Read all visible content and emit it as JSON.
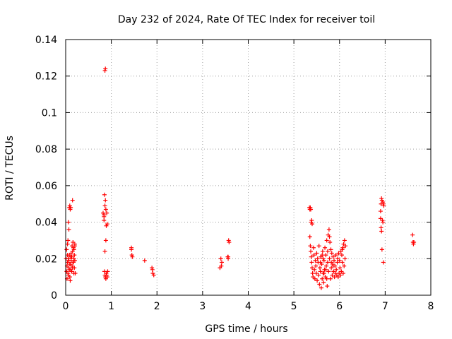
{
  "chart_data": {
    "type": "scatter",
    "title": "Day 232 of 2024, Rate Of TEC Index for receiver toil",
    "xlabel": "GPS time / hours",
    "ylabel": "ROTI / TECUs",
    "xlim": [
      0,
      8
    ],
    "ylim": [
      0,
      0.14
    ],
    "xticks": [
      0,
      1,
      2,
      3,
      4,
      5,
      6,
      7,
      8
    ],
    "xtick_labels": [
      "0",
      "1",
      "2",
      "3",
      "4",
      "5",
      "6",
      "7",
      "8"
    ],
    "yticks": [
      0,
      0.02,
      0.04,
      0.06,
      0.08,
      0.1,
      0.12,
      0.14
    ],
    "ytick_labels": [
      "0",
      "0.02",
      "0.04",
      "0.06",
      "0.08",
      "0.1",
      "0.12",
      "0.14"
    ],
    "grid": true,
    "marker": "+",
    "series": [
      {
        "name": "ROTI",
        "color": "#ff0000",
        "points": [
          [
            0.02,
            0.013
          ],
          [
            0.03,
            0.016
          ],
          [
            0.04,
            0.018
          ],
          [
            0.05,
            0.012
          ],
          [
            0.06,
            0.02
          ],
          [
            0.07,
            0.015
          ],
          [
            0.08,
            0.022
          ],
          [
            0.09,
            0.01
          ],
          [
            0.1,
            0.017
          ],
          [
            0.11,
            0.014
          ],
          [
            0.12,
            0.019
          ],
          [
            0.13,
            0.021
          ],
          [
            0.14,
            0.016
          ],
          [
            0.15,
            0.024
          ],
          [
            0.16,
            0.018
          ],
          [
            0.17,
            0.026
          ],
          [
            0.18,
            0.02
          ],
          [
            0.19,
            0.015
          ],
          [
            0.2,
            0.028
          ],
          [
            0.21,
            0.012
          ],
          [
            0.02,
            0.025
          ],
          [
            0.04,
            0.028
          ],
          [
            0.03,
            0.009
          ],
          [
            0.06,
            0.011
          ],
          [
            0.08,
            0.014
          ],
          [
            0.1,
            0.008
          ],
          [
            0.12,
            0.023
          ],
          [
            0.14,
            0.027
          ],
          [
            0.16,
            0.029
          ],
          [
            0.18,
            0.025
          ],
          [
            0.05,
            0.03
          ],
          [
            0.07,
            0.019
          ],
          [
            0.09,
            0.017
          ],
          [
            0.11,
            0.021
          ],
          [
            0.13,
            0.013
          ],
          [
            0.15,
            0.015
          ],
          [
            0.17,
            0.018
          ],
          [
            0.19,
            0.022
          ],
          [
            0.2,
            0.019
          ],
          [
            0.01,
            0.02
          ],
          [
            0.06,
            0.04
          ],
          [
            0.07,
            0.036
          ],
          [
            0.08,
            0.048
          ],
          [
            0.09,
            0.049
          ],
          [
            0.1,
            0.047
          ],
          [
            0.11,
            0.048
          ],
          [
            0.15,
            0.052
          ],
          [
            0.2,
            0.027
          ],
          [
            0.18,
            0.012
          ],
          [
            0.04,
            0.022
          ],
          [
            0.82,
            0.045
          ],
          [
            0.84,
            0.041
          ],
          [
            0.85,
            0.055
          ],
          [
            0.86,
            0.049
          ],
          [
            0.87,
            0.052
          ],
          [
            0.88,
            0.03
          ],
          [
            0.89,
            0.038
          ],
          [
            0.9,
            0.045
          ],
          [
            0.86,
            0.024
          ],
          [
            0.84,
            0.043
          ],
          [
            0.85,
            0.013
          ],
          [
            0.86,
            0.011
          ],
          [
            0.87,
            0.01
          ],
          [
            0.88,
            0.009
          ],
          [
            0.89,
            0.012
          ],
          [
            0.9,
            0.011
          ],
          [
            0.91,
            0.01
          ],
          [
            0.92,
            0.013
          ],
          [
            0.86,
            0.123
          ],
          [
            0.87,
            0.124
          ],
          [
            0.88,
            0.047
          ],
          [
            0.84,
            0.044
          ],
          [
            0.91,
            0.039
          ],
          [
            1.44,
            0.026
          ],
          [
            1.45,
            0.022
          ],
          [
            1.46,
            0.021
          ],
          [
            1.44,
            0.025
          ],
          [
            1.73,
            0.019
          ],
          [
            1.89,
            0.015
          ],
          [
            1.9,
            0.014
          ],
          [
            1.91,
            0.012
          ],
          [
            1.93,
            0.011
          ],
          [
            3.38,
            0.015
          ],
          [
            3.4,
            0.02
          ],
          [
            3.41,
            0.016
          ],
          [
            3.42,
            0.018
          ],
          [
            3.55,
            0.021
          ],
          [
            3.56,
            0.02
          ],
          [
            3.57,
            0.03
          ],
          [
            3.58,
            0.029
          ],
          [
            3.56,
            0.021
          ],
          [
            5.34,
            0.048
          ],
          [
            5.35,
            0.047
          ],
          [
            5.36,
            0.048
          ],
          [
            5.37,
            0.047
          ],
          [
            5.38,
            0.04
          ],
          [
            5.4,
            0.039
          ],
          [
            5.39,
            0.041
          ],
          [
            5.35,
            0.032
          ],
          [
            5.36,
            0.027
          ],
          [
            5.37,
            0.024
          ],
          [
            5.38,
            0.021
          ],
          [
            5.39,
            0.018
          ],
          [
            5.4,
            0.015
          ],
          [
            5.41,
            0.012
          ],
          [
            5.42,
            0.01
          ],
          [
            5.43,
            0.026
          ],
          [
            5.44,
            0.022
          ],
          [
            5.45,
            0.014
          ],
          [
            5.46,
            0.009
          ],
          [
            5.47,
            0.019
          ],
          [
            5.48,
            0.016
          ],
          [
            5.49,
            0.012
          ],
          [
            5.5,
            0.023
          ],
          [
            5.51,
            0.008
          ],
          [
            5.52,
            0.02
          ],
          [
            5.53,
            0.018
          ],
          [
            5.54,
            0.011
          ],
          [
            5.55,
            0.027
          ],
          [
            5.56,
            0.006
          ],
          [
            5.57,
            0.015
          ],
          [
            5.58,
            0.013
          ],
          [
            5.59,
            0.021
          ],
          [
            5.6,
            0.004
          ],
          [
            5.61,
            0.017
          ],
          [
            5.62,
            0.009
          ],
          [
            5.63,
            0.024
          ],
          [
            5.64,
            0.012
          ],
          [
            5.65,
            0.007
          ],
          [
            5.66,
            0.019
          ],
          [
            5.67,
            0.014
          ],
          [
            5.68,
            0.026
          ],
          [
            5.69,
            0.01
          ],
          [
            5.7,
            0.022
          ],
          [
            5.71,
            0.016
          ],
          [
            5.72,
            0.03
          ],
          [
            5.73,
            0.005
          ],
          [
            5.74,
            0.018
          ],
          [
            5.75,
            0.033
          ],
          [
            5.76,
            0.013
          ],
          [
            5.77,
            0.036
          ],
          [
            5.78,
            0.02
          ],
          [
            5.79,
            0.029
          ],
          [
            5.8,
            0.009
          ],
          [
            5.81,
            0.025
          ],
          [
            5.82,
            0.015
          ],
          [
            5.83,
            0.023
          ],
          [
            5.84,
            0.011
          ],
          [
            5.85,
            0.017
          ],
          [
            5.86,
            0.021
          ],
          [
            5.87,
            0.013
          ],
          [
            5.88,
            0.019
          ],
          [
            5.89,
            0.01
          ],
          [
            5.9,
            0.016
          ],
          [
            5.91,
            0.012
          ],
          [
            5.92,
            0.022
          ],
          [
            5.93,
            0.014
          ],
          [
            5.94,
            0.011
          ],
          [
            5.95,
            0.018
          ],
          [
            5.96,
            0.02
          ],
          [
            5.97,
            0.01
          ],
          [
            5.98,
            0.023
          ],
          [
            5.99,
            0.012
          ],
          [
            6.0,
            0.019
          ],
          [
            6.01,
            0.015
          ],
          [
            6.02,
            0.011
          ],
          [
            6.03,
            0.024
          ],
          [
            6.04,
            0.013
          ],
          [
            6.05,
            0.022
          ],
          [
            6.06,
            0.018
          ],
          [
            6.07,
            0.026
          ],
          [
            6.08,
            0.012
          ],
          [
            6.09,
            0.028
          ],
          [
            6.1,
            0.016
          ],
          [
            6.11,
            0.03
          ],
          [
            6.12,
            0.02
          ],
          [
            6.13,
            0.027
          ],
          [
            6.06,
            0.025
          ],
          [
            5.58,
            0.018
          ],
          [
            5.62,
            0.022
          ],
          [
            5.66,
            0.012
          ],
          [
            5.7,
            0.014
          ],
          [
            5.74,
            0.024
          ],
          [
            5.78,
            0.032
          ],
          [
            5.82,
            0.018
          ],
          [
            5.86,
            0.016
          ],
          [
            5.64,
            0.02
          ],
          [
            5.72,
            0.009
          ],
          [
            6.9,
            0.046
          ],
          [
            6.91,
            0.05
          ],
          [
            6.92,
            0.053
          ],
          [
            6.93,
            0.052
          ],
          [
            6.94,
            0.041
          ],
          [
            6.95,
            0.04
          ],
          [
            6.96,
            0.05
          ],
          [
            6.97,
            0.049
          ],
          [
            6.91,
            0.037
          ],
          [
            6.92,
            0.035
          ],
          [
            6.93,
            0.025
          ],
          [
            6.96,
            0.018
          ],
          [
            6.9,
            0.042
          ],
          [
            6.95,
            0.051
          ],
          [
            7.6,
            0.033
          ],
          [
            7.61,
            0.029
          ],
          [
            7.62,
            0.028
          ],
          [
            7.63,
            0.029
          ]
        ]
      }
    ]
  }
}
